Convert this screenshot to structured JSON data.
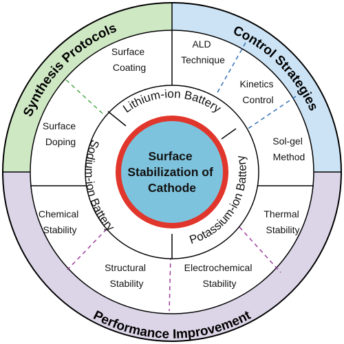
{
  "outer_quadrants": [
    {
      "label": "Synthesis Protocols",
      "color": "#cfe8c4"
    },
    {
      "label": "Control Strategies",
      "color": "#cce3f5"
    },
    {
      "label": "Performance Improvement",
      "color": "#dcd5e8"
    }
  ],
  "items": {
    "surface_coating": [
      "Surface",
      "Coating"
    ],
    "surface_doping": [
      "Surface",
      "Doping"
    ],
    "ald_technique": [
      "ALD",
      "Technique"
    ],
    "kinetics_control": [
      "Kinetics",
      "Control"
    ],
    "sol_gel_method": [
      "Sol-gel",
      "Method"
    ],
    "chemical_stability": [
      "Chemical",
      "Stability"
    ],
    "structural_stability": [
      "Structural",
      "Stability"
    ],
    "electrochemical_stability": [
      "Electrochemical",
      "Stability"
    ],
    "thermal_stability": [
      "Thermal",
      "Stability"
    ]
  },
  "batteries": {
    "lithium": "Lithium-ion Battery",
    "sodium": "Sodium-ion Battery",
    "potassium": "Potassium-ion Battery"
  },
  "center": [
    "Surface",
    "Stabilization of",
    "Cathode"
  ],
  "colors": {
    "center_fill": "#7ec3dd",
    "center_ring": "#e0362c",
    "synthesis_dash": "#4aa84a",
    "control_dash": "#2e6fb3",
    "performance_dash": "#9b3c9b"
  }
}
